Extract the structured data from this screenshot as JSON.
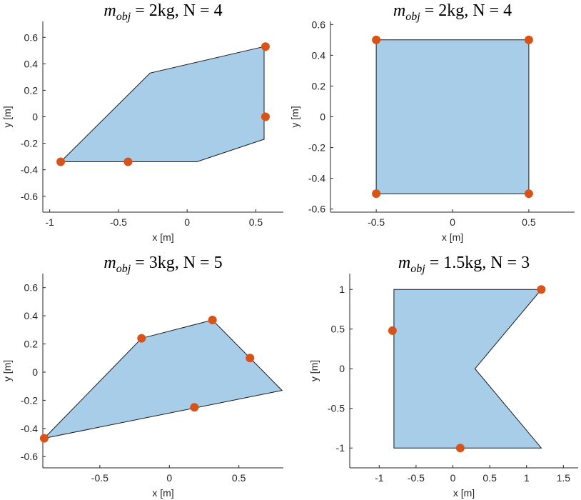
{
  "colors": {
    "fill": "#a8cde8",
    "marker": "#d95319",
    "axis": "#262626"
  },
  "chart_data": [
    {
      "type": "scatter",
      "title_parts": {
        "m": "m",
        "sub": "obj",
        "rest": " = 2kg, N = 4"
      },
      "xlabel": "x [m]",
      "ylabel": "y [m]",
      "xlim": [
        -1.05,
        0.7
      ],
      "ylim": [
        -0.72,
        0.72
      ],
      "xticks": [
        -1,
        -0.5,
        0,
        0.5
      ],
      "xtick_labels": [
        "-1",
        "-0.5",
        "0",
        "0.5"
      ],
      "yticks": [
        -0.6,
        -0.4,
        -0.2,
        0,
        0.2,
        0.4,
        0.6
      ],
      "ytick_labels": [
        "-0.6",
        "-0.4",
        "-0.2",
        "0",
        "0.2",
        "0.4",
        "0.6"
      ],
      "polygon": [
        [
          -0.92,
          -0.34
        ],
        [
          0.07,
          -0.34
        ],
        [
          0.56,
          -0.17
        ],
        [
          0.56,
          0.53
        ],
        [
          -0.27,
          0.33
        ]
      ],
      "points": [
        [
          -0.92,
          -0.34
        ],
        [
          -0.43,
          -0.34
        ],
        [
          0.57,
          0.0
        ],
        [
          0.57,
          0.53
        ]
      ]
    },
    {
      "type": "scatter",
      "title_parts": {
        "m": "m",
        "sub": "obj",
        "rest": " = 2kg, N = 4"
      },
      "xlabel": "x [m]",
      "ylabel": "y [m]",
      "xlim": [
        -0.8,
        0.8
      ],
      "ylim": [
        -0.62,
        0.62
      ],
      "xticks": [
        -0.5,
        0,
        0.5
      ],
      "xtick_labels": [
        "-0.5",
        "0",
        "0.5"
      ],
      "yticks": [
        -0.6,
        -0.4,
        -0.2,
        0,
        0.2,
        0.4,
        0.6
      ],
      "ytick_labels": [
        "-0.6",
        "-0.4",
        "-0.2",
        "0",
        "0.2",
        "0.4",
        "0.6"
      ],
      "polygon": [
        [
          -0.5,
          -0.5
        ],
        [
          0.5,
          -0.5
        ],
        [
          0.5,
          0.5
        ],
        [
          -0.5,
          0.5
        ]
      ],
      "points": [
        [
          -0.5,
          0.5
        ],
        [
          0.5,
          0.5
        ],
        [
          -0.5,
          -0.5
        ],
        [
          0.5,
          -0.5
        ]
      ]
    },
    {
      "type": "scatter",
      "title_parts": {
        "m": "m",
        "sub": "obj",
        "rest": " = 3kg, N = 5"
      },
      "xlabel": "x [m]",
      "ylabel": "y [m]",
      "xlim": [
        -0.91,
        0.82
      ],
      "ylim": [
        -0.68,
        0.7
      ],
      "xticks": [
        -0.5,
        0,
        0.5
      ],
      "xtick_labels": [
        "-0.5",
        "0",
        "0.5"
      ],
      "yticks": [
        -0.6,
        -0.4,
        -0.2,
        0,
        0.2,
        0.4,
        0.6
      ],
      "ytick_labels": [
        "-0.6",
        "-0.4",
        "-0.2",
        "0",
        "0.2",
        "0.4",
        "0.6"
      ],
      "polygon": [
        [
          -0.9,
          -0.47
        ],
        [
          0.81,
          -0.13
        ],
        [
          0.31,
          0.37
        ],
        [
          -0.2,
          0.24
        ]
      ],
      "points": [
        [
          -0.9,
          -0.47
        ],
        [
          -0.2,
          0.24
        ],
        [
          0.31,
          0.37
        ],
        [
          0.58,
          0.1
        ],
        [
          0.18,
          -0.25
        ]
      ]
    },
    {
      "type": "scatter",
      "title_parts": {
        "m": "m",
        "sub": "obj",
        "rest": " = 1.5kg, N = 3"
      },
      "xlabel": "x [m]",
      "ylabel": "y [m]",
      "xlim": [
        -1.4,
        1.7
      ],
      "ylim": [
        -1.25,
        1.2
      ],
      "xticks": [
        -1,
        -0.5,
        0,
        0.5,
        1,
        1.5
      ],
      "xtick_labels": [
        "-1",
        "-0.5",
        "0",
        "0.5",
        "1",
        "1.5"
      ],
      "yticks": [
        -1,
        -0.5,
        0,
        0.5,
        1
      ],
      "ytick_labels": [
        "-1",
        "-0.5",
        "0",
        "0.5",
        "1"
      ],
      "polygon": [
        [
          -0.8,
          1.0
        ],
        [
          1.2,
          1.0
        ],
        [
          0.3,
          0.0
        ],
        [
          1.2,
          -1.0
        ],
        [
          -0.8,
          -1.0
        ]
      ],
      "points": [
        [
          1.2,
          1.0
        ],
        [
          -0.82,
          0.48
        ],
        [
          0.1,
          -1.0
        ]
      ]
    }
  ]
}
